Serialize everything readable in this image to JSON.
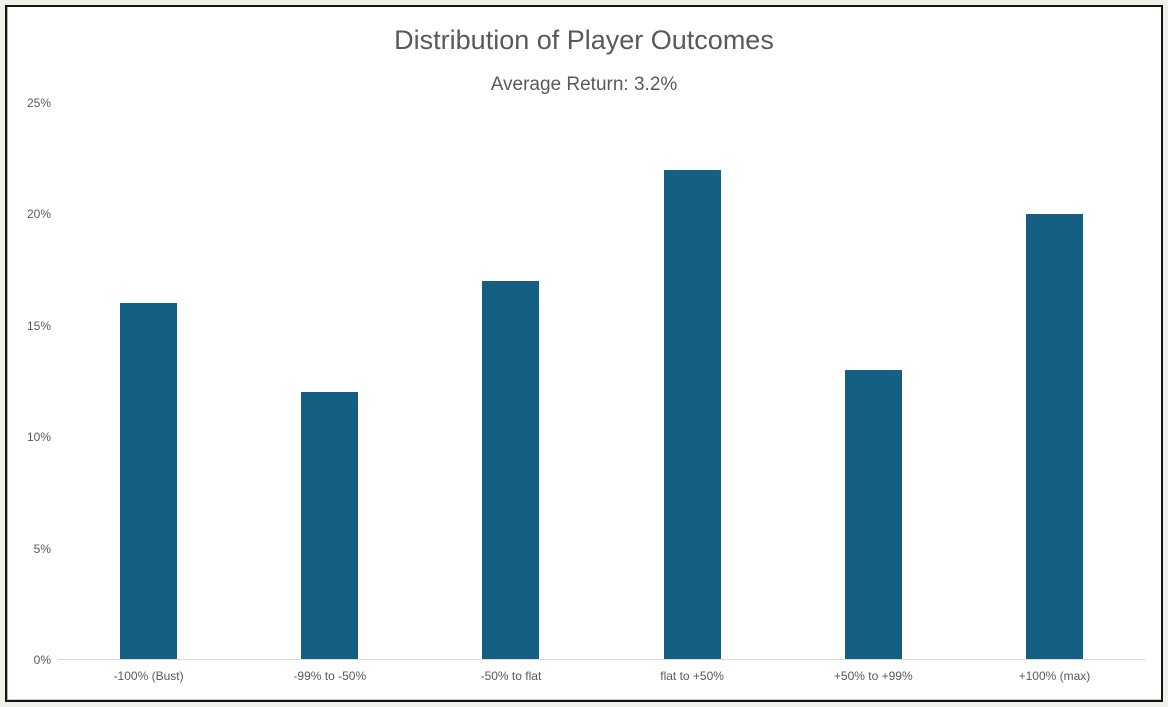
{
  "chart_data": {
    "type": "bar",
    "title": "Distribution of Player Outcomes",
    "subtitle": "Average Return: 3.2%",
    "categories": [
      "-100% (Bust)",
      "-99% to -50%",
      "-50% to flat",
      "flat to +50%",
      "+50% to +99%",
      "+100% (max)"
    ],
    "values": [
      16,
      12,
      17,
      22,
      13,
      20
    ],
    "unit": "%",
    "xlabel": "",
    "ylabel": "",
    "ylim": [
      0,
      25
    ],
    "y_ticks": [
      "0%",
      "5%",
      "10%",
      "15%",
      "20%",
      "25%"
    ],
    "grid": false,
    "legend": false,
    "colors": {
      "bar": "#156082",
      "text": "#595959",
      "axis_line": "#d9d9d9",
      "page_background": "#f2f0ea",
      "frame_border": "#141414",
      "plot_background": "#ffffff"
    }
  }
}
